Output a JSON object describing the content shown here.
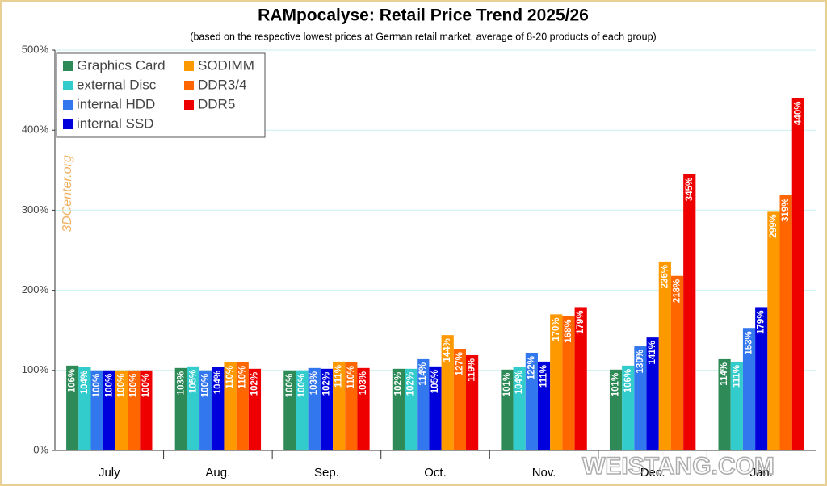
{
  "chart_data": {
    "type": "bar",
    "title": "RAMpocalyse: Retail Price Trend 2025/26",
    "subtitle": "(based on the respective lowest prices at German retail market, average of 8-20 products of each group)",
    "annotations": [
      "3DCenter.org",
      "WEISTANG.COM"
    ],
    "categories": [
      "July",
      "Aug.",
      "Sep.",
      "Oct.",
      "Nov.",
      "Dec.",
      "Jan."
    ],
    "series": [
      {
        "name": "Graphics Card",
        "color": "#2e8b57",
        "values": [
          106,
          103,
          100,
          102,
          101,
          101,
          114
        ],
        "value_labels": [
          "106%",
          "103%",
          "100%",
          "102%",
          "101%",
          "101%",
          "114%"
        ]
      },
      {
        "name": "external Disc",
        "color": "#33cccc",
        "values": [
          104,
          105,
          100,
          102,
          104,
          106,
          111
        ],
        "value_labels": [
          "104%",
          "105%",
          "100%",
          "102%",
          "104%",
          "106%",
          "111%"
        ]
      },
      {
        "name": "internal HDD",
        "color": "#3377ee",
        "values": [
          100,
          100,
          103,
          114,
          122,
          130,
          153
        ],
        "value_labels": [
          "100%",
          "100%",
          "103%",
          "114%",
          "122%",
          "130%",
          "153%"
        ]
      },
      {
        "name": "internal SSD",
        "color": "#0000dd",
        "values": [
          100,
          104,
          102,
          105,
          111,
          141,
          179
        ],
        "value_labels": [
          "100%",
          "104%",
          "102%",
          "105%",
          "111%",
          "141%",
          "179%"
        ]
      },
      {
        "name": "SODIMM",
        "color": "#ff9900",
        "values": [
          100,
          110,
          111,
          144,
          170,
          236,
          299
        ],
        "value_labels": [
          "100%",
          "110%",
          "111%",
          "144%",
          "170%",
          "236%",
          "299%"
        ]
      },
      {
        "name": "DDR3/4",
        "color": "#ff6600",
        "values": [
          100,
          110,
          110,
          127,
          168,
          218,
          319
        ],
        "value_labels": [
          "100%",
          "110%",
          "110%",
          "127%",
          "168%",
          "218%",
          "319%"
        ]
      },
      {
        "name": "DDR5",
        "color": "#ee0000",
        "values": [
          100,
          102,
          103,
          119,
          179,
          345,
          440
        ],
        "value_labels": [
          "100%",
          "102%",
          "103%",
          "119%",
          "179%",
          "345%",
          "440%"
        ]
      }
    ],
    "ylim": [
      0,
      500
    ],
    "yticks": [
      {
        "value": 0,
        "label": "0%"
      },
      {
        "value": 100,
        "label": "100%"
      },
      {
        "value": 200,
        "label": "200%"
      },
      {
        "value": 300,
        "label": "300%"
      },
      {
        "value": 400,
        "label": "400%"
      },
      {
        "value": 500,
        "label": "500%"
      }
    ],
    "grid": true,
    "legend": "upper left"
  }
}
